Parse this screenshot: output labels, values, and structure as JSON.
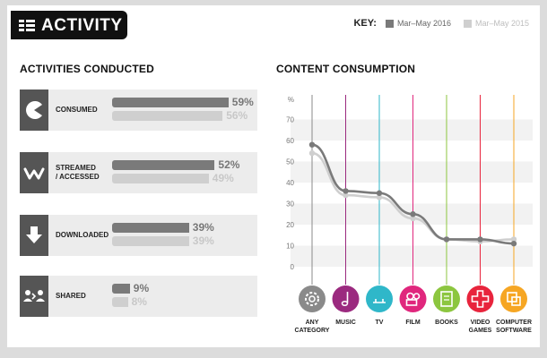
{
  "header": {
    "title": "ACTIVITY"
  },
  "key": {
    "label": "KEY:",
    "series_2016": "Mar–May 2016",
    "series_2015": "Mar–May 2015"
  },
  "colors": {
    "series_2016": "#7a7a7a",
    "series_2015": "#cfcfcf"
  },
  "chart_data": [
    {
      "type": "bar",
      "title": "ACTIVITIES CONDUCTED",
      "categories": [
        "CONSUMED",
        "STREAMED\n/ ACCESSED",
        "DOWNLOADED",
        "SHARED"
      ],
      "category_icons": [
        "pacman-icon",
        "streaming-icon",
        "download-icon",
        "share-icon"
      ],
      "series": [
        {
          "name": "Mar–May 2016",
          "values": [
            59,
            52,
            39,
            9
          ],
          "labels": [
            "59%",
            "52%",
            "39%",
            "9%"
          ]
        },
        {
          "name": "Mar–May 2015",
          "values": [
            56,
            49,
            39,
            8
          ],
          "labels": [
            "56%",
            "49%",
            "39%",
            "8%"
          ]
        }
      ],
      "ylim": [
        0,
        100
      ]
    },
    {
      "type": "line",
      "title": "CONTENT CONSUMPTION",
      "ylabel": "%",
      "categories": [
        "ANY CATEGORY",
        "MUSIC",
        "TV",
        "FILM",
        "BOOKS",
        "VIDEO GAMES",
        "COMPUTER SOFTWARE"
      ],
      "category_label_lines": [
        [
          "ANY",
          "CATEGORY"
        ],
        [
          "MUSIC"
        ],
        [
          "TV"
        ],
        [
          "FILM"
        ],
        [
          "BOOKS"
        ],
        [
          "VIDEO",
          "GAMES"
        ],
        [
          "COMPUTER",
          "SOFTWARE"
        ]
      ],
      "category_colors": [
        "#8a8a8a",
        "#9b2a7f",
        "#2fb7c9",
        "#e0277d",
        "#8cc63f",
        "#e8243c",
        "#f6a623"
      ],
      "category_icons": [
        "gear-icon",
        "music-note-icon",
        "tv-icon",
        "film-camera-icon",
        "book-icon",
        "gamepad-icon",
        "software-icon"
      ],
      "series": [
        {
          "name": "Mar–May 2016",
          "values": [
            58,
            36,
            35,
            25,
            13,
            13,
            11
          ]
        },
        {
          "name": "Mar–May 2015",
          "values": [
            54,
            34,
            33,
            23,
            13,
            12,
            13
          ]
        }
      ],
      "yticks": [
        0,
        10,
        20,
        30,
        40,
        50,
        60,
        70
      ],
      "ylim": [
        0,
        80
      ]
    }
  ]
}
